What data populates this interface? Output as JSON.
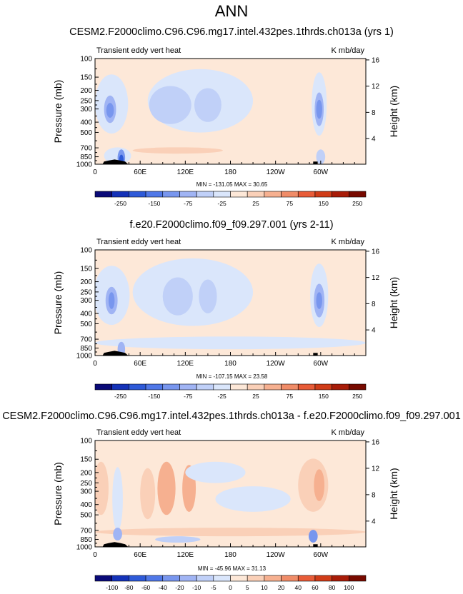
{
  "figure_title": "ANN",
  "chart_data": [
    {
      "type": "heatmap",
      "title": "CESM2.F2000climo.C96.C96.mg17.intel.432pes.1thrds.ch013a (yrs 1)",
      "left_label": "Transient eddy vert heat",
      "units": "K mb/day",
      "ylabel": "Pressure (mb)",
      "y2label": "Height (km)",
      "x_ticks": [
        "0",
        "60E",
        "120E",
        "180",
        "120W",
        "60W"
      ],
      "y_ticks": [
        "100",
        "150",
        "200",
        "250",
        "300",
        "400",
        "500",
        "700",
        "850",
        "1000"
      ],
      "y2_ticks": [
        "16",
        "12",
        "8",
        "4"
      ],
      "stats": "MIN = -131.05  MAX = 30.65",
      "colorbar_levels": [
        "-250",
        "-150",
        "-75",
        "-25",
        "25",
        "75",
        "150",
        "250"
      ],
      "colorbar_colors": [
        "#0a0a78",
        "#1432b8",
        "#2e5ad8",
        "#5078e8",
        "#7896ee",
        "#a0b4f4",
        "#c0d0f8",
        "#dae6fb",
        "#fde8d8",
        "#fad0b8",
        "#f6b090",
        "#f08c68",
        "#e85c38",
        "#d03c18",
        "#a81c08",
        "#780a00"
      ],
      "min": -131.05,
      "max": 30.65
    },
    {
      "type": "heatmap",
      "title": "f.e20.F2000climo.f09_f09.297.001 (yrs 2-11)",
      "left_label": "Transient eddy vert heat",
      "units": "K mb/day",
      "ylabel": "Pressure (mb)",
      "y2label": "Height (km)",
      "x_ticks": [
        "0",
        "60E",
        "120E",
        "180",
        "120W",
        "60W"
      ],
      "y_ticks": [
        "100",
        "150",
        "200",
        "250",
        "300",
        "400",
        "500",
        "700",
        "850",
        "1000"
      ],
      "y2_ticks": [
        "16",
        "12",
        "8",
        "4"
      ],
      "stats": "MIN = -107.15  MAX = 23.58",
      "colorbar_levels": [
        "-250",
        "-150",
        "-75",
        "-25",
        "25",
        "75",
        "150",
        "250"
      ],
      "colorbar_colors": [
        "#0a0a78",
        "#1432b8",
        "#2e5ad8",
        "#5078e8",
        "#7896ee",
        "#a0b4f4",
        "#c0d0f8",
        "#dae6fb",
        "#fde8d8",
        "#fad0b8",
        "#f6b090",
        "#f08c68",
        "#e85c38",
        "#d03c18",
        "#a81c08",
        "#780a00"
      ],
      "min": -107.15,
      "max": 23.58
    },
    {
      "type": "heatmap",
      "title": "CESM2.F2000climo.C96.C96.mg17.intel.432pes.1thrds.ch013a - f.e20.F2000climo.f09_f09.297.001",
      "left_label": "Transient eddy vert heat",
      "units": "K mb/day",
      "ylabel": "Pressure (mb)",
      "y2label": "Height (km)",
      "x_ticks": [
        "0",
        "60E",
        "120E",
        "180",
        "120W",
        "60W"
      ],
      "y_ticks": [
        "100",
        "150",
        "200",
        "250",
        "300",
        "400",
        "500",
        "700",
        "850",
        "1000"
      ],
      "y2_ticks": [
        "16",
        "12",
        "8",
        "4"
      ],
      "stats": "MIN = -45.96  MAX = 31.13",
      "colorbar_levels": [
        "-100",
        "-80",
        "-60",
        "-40",
        "-20",
        "-10",
        "-5",
        "0",
        "5",
        "10",
        "20",
        "40",
        "60",
        "80",
        "100"
      ],
      "colorbar_colors": [
        "#0a0a78",
        "#1432b8",
        "#2e5ad8",
        "#5078e8",
        "#7896ee",
        "#a0b4f4",
        "#c0d0f8",
        "#dae6fb",
        "#fde8d8",
        "#fad0b8",
        "#f6b090",
        "#f08c68",
        "#e85c38",
        "#d03c18",
        "#a81c08",
        "#780a00"
      ],
      "min": -45.96,
      "max": 31.13
    }
  ]
}
